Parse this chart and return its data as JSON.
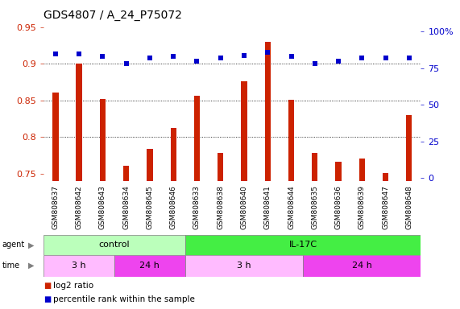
{
  "title": "GDS4807 / A_24_P75072",
  "samples": [
    "GSM808637",
    "GSM808642",
    "GSM808643",
    "GSM808634",
    "GSM808645",
    "GSM808646",
    "GSM808633",
    "GSM808638",
    "GSM808640",
    "GSM808641",
    "GSM808644",
    "GSM808635",
    "GSM808636",
    "GSM808639",
    "GSM808647",
    "GSM808648"
  ],
  "log2_ratio": [
    0.861,
    0.9,
    0.852,
    0.76,
    0.784,
    0.812,
    0.856,
    0.778,
    0.876,
    0.93,
    0.851,
    0.778,
    0.766,
    0.771,
    0.751,
    0.83
  ],
  "percentile_rank": [
    85,
    85,
    83,
    78,
    82,
    83,
    80,
    82,
    84,
    86,
    83,
    78,
    80,
    82,
    82,
    82
  ],
  "bar_color": "#cc2200",
  "dot_color": "#0000cc",
  "ylim_left": [
    0.74,
    0.96
  ],
  "ylim_right": [
    -2,
    108
  ],
  "yticks_left": [
    0.75,
    0.8,
    0.85,
    0.9,
    0.95
  ],
  "yticks_right": [
    0,
    25,
    50,
    75,
    100
  ],
  "ytick_labels_right": [
    "0",
    "25",
    "50",
    "75",
    "100%"
  ],
  "hlines": [
    0.8,
    0.85,
    0.9
  ],
  "agent_groups": [
    {
      "label": "control",
      "start": 0,
      "end": 6,
      "color": "#bbffbb"
    },
    {
      "label": "IL-17C",
      "start": 6,
      "end": 16,
      "color": "#44ee44"
    }
  ],
  "time_groups": [
    {
      "label": "3 h",
      "start": 0,
      "end": 3,
      "color": "#ffbbff"
    },
    {
      "label": "24 h",
      "start": 3,
      "end": 6,
      "color": "#ee44ee"
    },
    {
      "label": "3 h",
      "start": 6,
      "end": 11,
      "color": "#ffbbff"
    },
    {
      "label": "24 h",
      "start": 11,
      "end": 16,
      "color": "#ee44ee"
    }
  ],
  "legend_items": [
    {
      "label": "log2 ratio",
      "color": "#cc2200"
    },
    {
      "label": "percentile rank within the sample",
      "color": "#0000cc"
    }
  ],
  "xtick_bg": "#d8d8d8",
  "plot_bg": "#ffffff",
  "fig_bg": "#ffffff",
  "title_fontsize": 10,
  "tick_fontsize": 8,
  "bar_width": 0.25
}
